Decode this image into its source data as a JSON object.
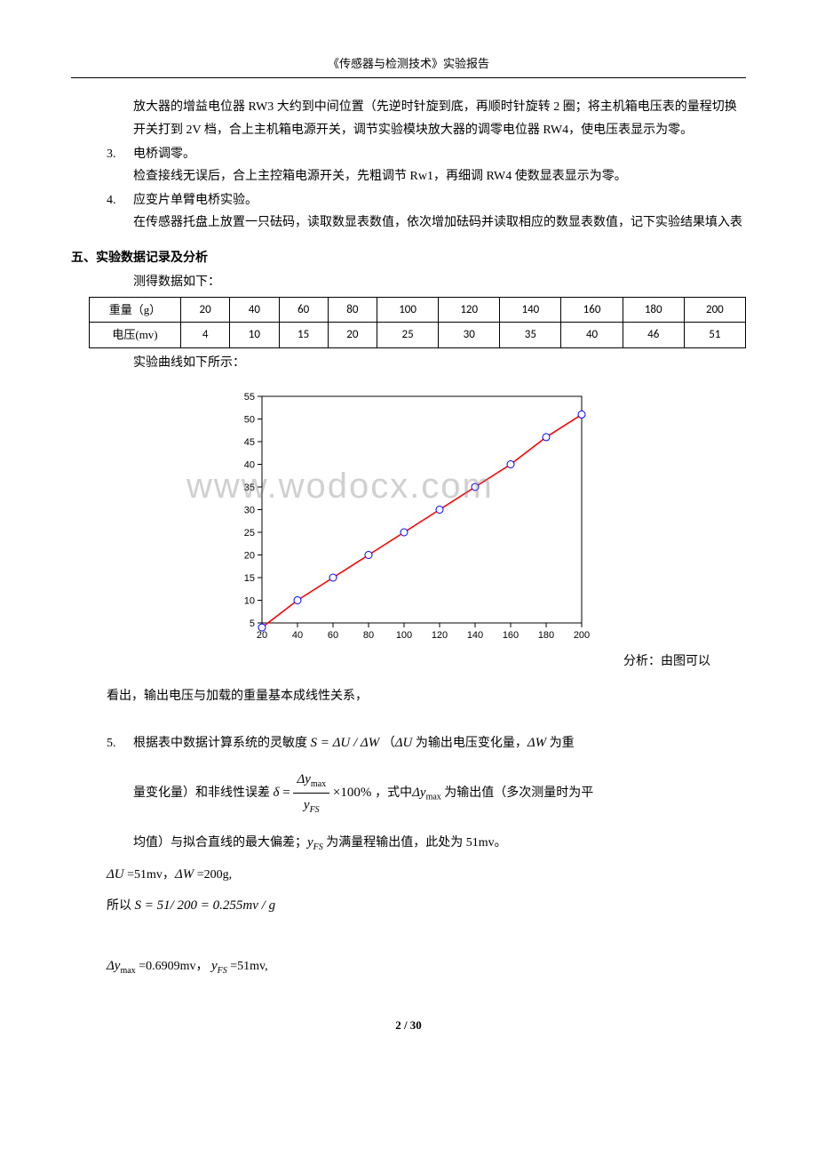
{
  "header": {
    "title": "《传感器与检测技术》实验报告"
  },
  "intro_paras": [
    "放大器的增益电位器 RW3 大约到中间位置（先逆时针旋到底，再顺时针旋转 2 圈；将主机箱电压表的量程切换开关打到 2V 档，合上主机箱电源开关，调节实验模块放大器的调零电位器 RW4，使电压表显示为零。"
  ],
  "step3": {
    "num": "3.",
    "title": "电桥调零。",
    "body": "检查接线无误后，合上主控箱电源开关，先粗调节 Rw1，再细调 RW4 使数显表显示为零。"
  },
  "step4": {
    "num": "4.",
    "title": "应变片单臂电桥实验。",
    "body": "在传感器托盘上放置一只砝码，读取数显表数值，依次增加砝码并读取相应的数显表数值，记下实验结果填入表"
  },
  "section5": {
    "heading": "五、实验数据记录及分析",
    "sub": "测得数据如下："
  },
  "table": {
    "row1_label": "重量（g）",
    "row2_label": "电压(mv)",
    "weights": [
      "20",
      "40",
      "60",
      "80",
      "100",
      "120",
      "140",
      "160",
      "180",
      "200"
    ],
    "voltages": [
      "4",
      "10",
      "15",
      "20",
      "25",
      "30",
      "35",
      "40",
      "46",
      "51"
    ]
  },
  "chart_caption": "实验曲线如下所示：",
  "chart": {
    "type": "line",
    "x_values": [
      20,
      40,
      60,
      80,
      100,
      120,
      140,
      160,
      180,
      200
    ],
    "y_values": [
      4,
      10,
      15,
      20,
      25,
      30,
      35,
      40,
      46,
      51
    ],
    "xlim": [
      20,
      200
    ],
    "ylim": [
      5,
      55
    ],
    "xtick_step": 20,
    "ytick_step": 5,
    "line_color": "#ff0000",
    "marker_edge_color": "#0000ff",
    "marker_fill_color": "#ffffff",
    "marker_shape": "circle",
    "marker_size": 4,
    "line_width": 1.6,
    "axis_color": "#000000",
    "background_color": "#ffffff",
    "tick_fontsize": 11,
    "tick_font": "Arial"
  },
  "watermark_text": "www.wodocx.com",
  "analysis_lead": "分析：由图可以",
  "analysis_body": "看出，输出电压与加载的重量基本成线性关系，",
  "step5": {
    "num": "5.",
    "line1a": "根据表中数据计算系统的灵敏度 ",
    "eq1": "S = ΔU / ΔW",
    "line1b": "（",
    "dU": "ΔU",
    "line1c": " 为输出电压变化量，",
    "dW": "ΔW",
    "line1d": " 为重",
    "line2a": "量变化量）和非线性误差 ",
    "delta": "δ",
    "frac_num": "Δy",
    "frac_num_sub": "max",
    "frac_den": "y",
    "frac_den_sub": "FS",
    "pct": " ×100%",
    "line2b": "，式中",
    "dymax": "Δy",
    "dymax_sub": "max",
    "line2c": " 为输出值（多次测量时为平",
    "line3a": "均值）与拟合直线的最大偏差；",
    "yfs": "y",
    "yfs_sub": "FS",
    "line3b": " 为满量程输出值，此处为 51mv。"
  },
  "calc": {
    "l1a": "ΔU",
    "l1b": " =51mv，",
    "l1c": "ΔW",
    "l1d": " =200g,",
    "l2a": "所以 ",
    "l2b": "S = 51/ 200 = 0.255mv / g",
    "l3a": "Δy",
    "l3a_sub": "max",
    "l3b": " =0.6909mv，",
    "l3c": "y",
    "l3c_sub": "FS",
    "l3d": " =51mv,"
  },
  "footer": {
    "page": "2 / 30"
  }
}
